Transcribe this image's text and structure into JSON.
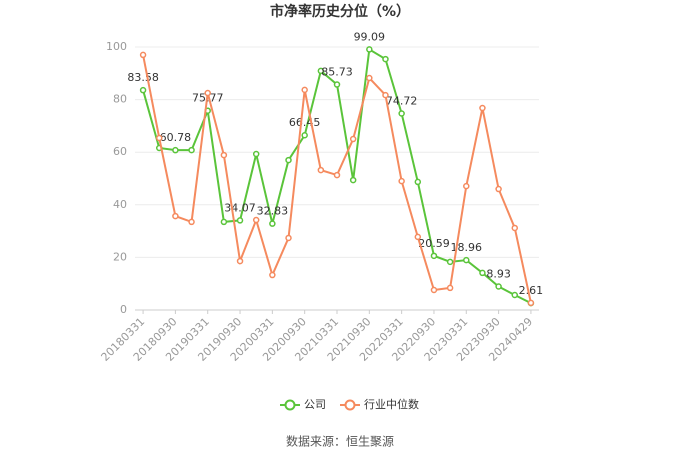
{
  "chart_data": {
    "type": "line",
    "title": "市净率历史分位（%）",
    "categories": [
      "20180331",
      null,
      "20180930",
      null,
      "20190331",
      null,
      "20190930",
      null,
      "20200331",
      null,
      "20200930",
      null,
      "20210331",
      null,
      "20210930",
      null,
      "20220331",
      null,
      "20220930",
      null,
      "20230331",
      null,
      "20230930",
      null,
      "20240429"
    ],
    "series": [
      {
        "name": "公司",
        "color": "#5ac43a",
        "values": [
          83.58,
          61.6,
          60.78,
          60.8,
          75.77,
          33.5,
          34.07,
          59.3,
          32.83,
          57,
          66.45,
          90.9,
          85.73,
          49.4,
          99.09,
          95.4,
          74.72,
          48.7,
          20.59,
          18.3,
          18.96,
          14.1,
          8.93,
          5.7,
          2.61
        ],
        "value_labels": [
          "83.58",
          null,
          "60.78",
          null,
          "75.77",
          null,
          "34.07",
          null,
          "32.83",
          null,
          "66.45",
          null,
          "85.73",
          null,
          "99.09",
          null,
          "74.72",
          null,
          "20.59",
          null,
          "18.96",
          null,
          "8.93",
          null,
          "2.61"
        ]
      },
      {
        "name": "行业中位数",
        "color": "#f58a5e",
        "values": [
          97,
          65.4,
          35.7,
          33.5,
          82.5,
          58.9,
          18.6,
          34.2,
          13.3,
          27.4,
          83.7,
          53.2,
          51.3,
          65,
          88.2,
          81.7,
          49,
          27.8,
          7.6,
          8.4,
          47.1,
          76.8,
          46,
          31.2,
          2.7
        ]
      }
    ],
    "ylim": [
      0,
      100
    ],
    "yticks": [
      0,
      20,
      40,
      60,
      80,
      100
    ],
    "grid": true,
    "legend": "bottom",
    "source": "数据来源：恒生聚源"
  }
}
